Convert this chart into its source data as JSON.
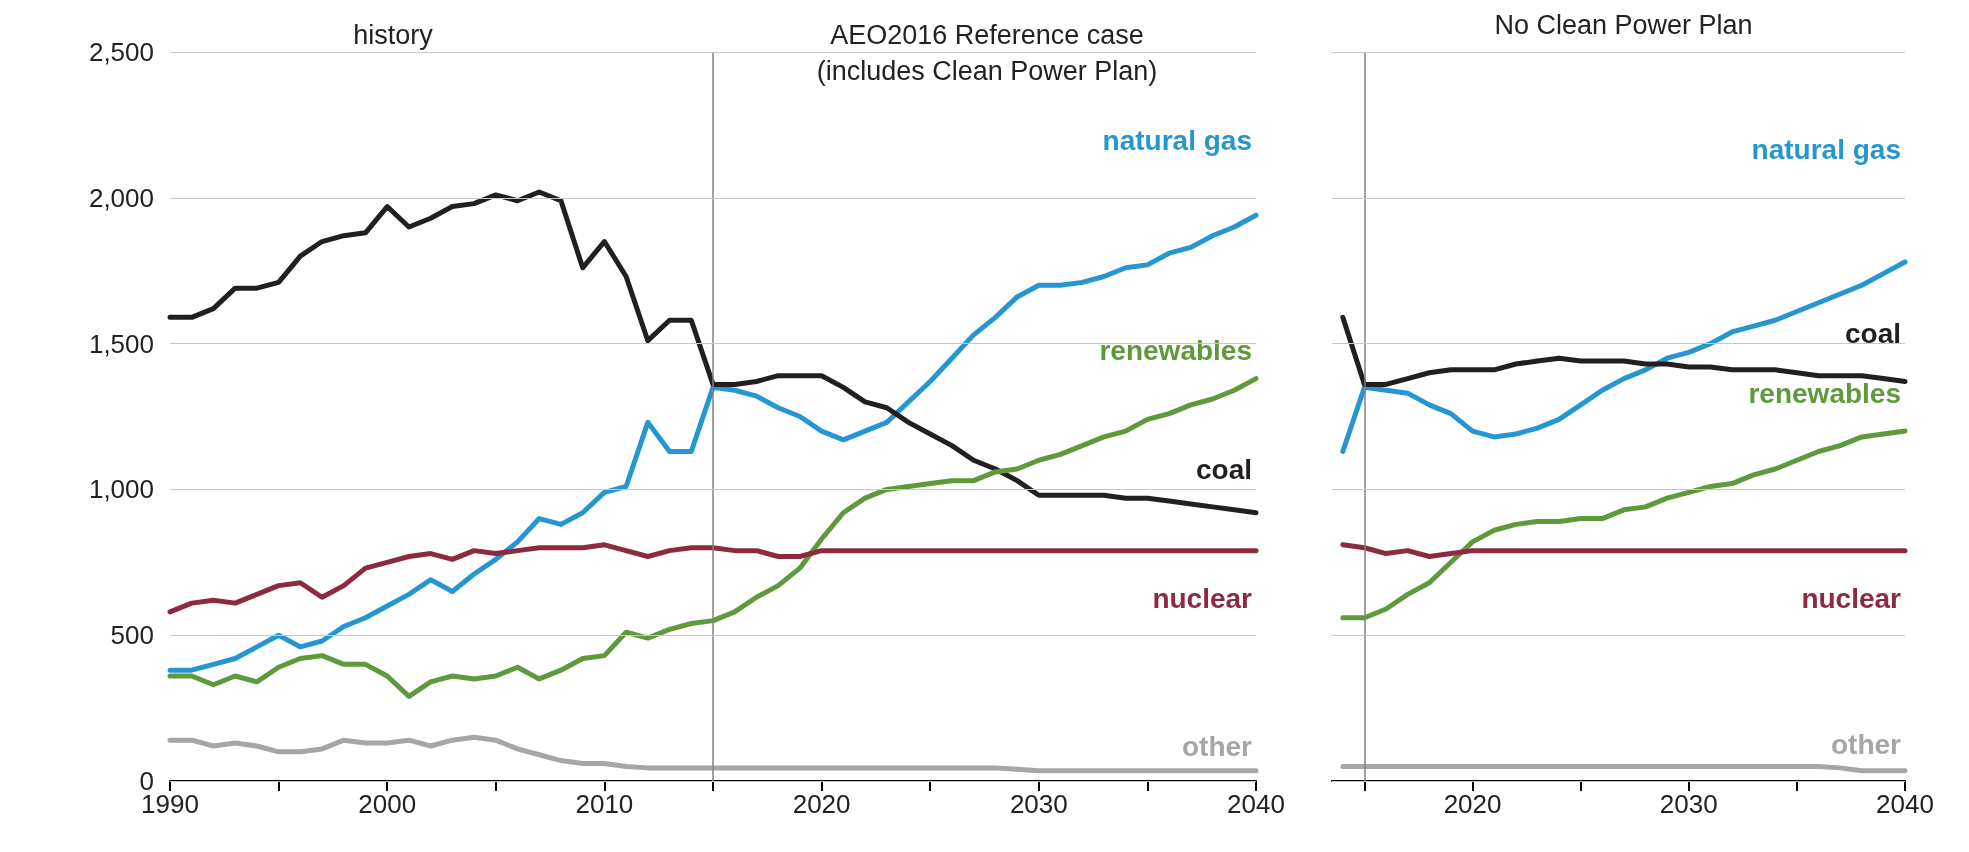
{
  "chart_data": [
    {
      "type": "line",
      "annotations": [
        "history",
        "AEO2016 Reference case\n(includes Clean Power Plan)"
      ],
      "x": [
        1990,
        1991,
        1992,
        1993,
        1994,
        1995,
        1996,
        1997,
        1998,
        1999,
        2000,
        2001,
        2002,
        2003,
        2004,
        2005,
        2006,
        2007,
        2008,
        2009,
        2010,
        2011,
        2012,
        2013,
        2014,
        2015,
        2016,
        2017,
        2018,
        2019,
        2020,
        2021,
        2022,
        2023,
        2024,
        2025,
        2026,
        2027,
        2028,
        2029,
        2030,
        2031,
        2032,
        2033,
        2034,
        2035,
        2036,
        2037,
        2038,
        2039,
        2040
      ],
      "series": [
        {
          "name": "natural gas",
          "color": "#2596cf",
          "values": [
            380,
            380,
            400,
            420,
            460,
            500,
            460,
            480,
            530,
            560,
            600,
            640,
            690,
            650,
            710,
            760,
            820,
            900,
            880,
            920,
            990,
            1010,
            1230,
            1130,
            1130,
            1350,
            1340,
            1320,
            1280,
            1250,
            1200,
            1170,
            1200,
            1230,
            1300,
            1370,
            1450,
            1530,
            1590,
            1660,
            1700,
            1700,
            1710,
            1730,
            1760,
            1770,
            1810,
            1830,
            1870,
            1900,
            1940
          ]
        },
        {
          "name": "coal",
          "color": "#231f20",
          "values": [
            1590,
            1590,
            1620,
            1690,
            1690,
            1710,
            1800,
            1850,
            1870,
            1880,
            1970,
            1900,
            1930,
            1970,
            1980,
            2010,
            1990,
            2020,
            1990,
            1760,
            1850,
            1730,
            1510,
            1580,
            1580,
            1360,
            1360,
            1370,
            1390,
            1390,
            1390,
            1350,
            1300,
            1280,
            1230,
            1190,
            1150,
            1100,
            1070,
            1030,
            980,
            980,
            980,
            980,
            970,
            970,
            960,
            950,
            940,
            930,
            920
          ]
        },
        {
          "name": "renewables",
          "color": "#5e9a3c",
          "values": [
            360,
            360,
            330,
            360,
            340,
            390,
            420,
            430,
            400,
            400,
            360,
            290,
            340,
            360,
            350,
            360,
            390,
            350,
            380,
            420,
            430,
            510,
            490,
            520,
            540,
            550,
            580,
            630,
            670,
            730,
            830,
            920,
            970,
            1000,
            1010,
            1020,
            1030,
            1030,
            1060,
            1070,
            1100,
            1120,
            1150,
            1180,
            1200,
            1240,
            1260,
            1290,
            1310,
            1340,
            1380
          ]
        },
        {
          "name": "nuclear",
          "color": "#8c2b40",
          "values": [
            580,
            610,
            620,
            610,
            640,
            670,
            680,
            630,
            670,
            730,
            750,
            770,
            780,
            760,
            790,
            780,
            790,
            800,
            800,
            800,
            810,
            790,
            770,
            790,
            800,
            800,
            790,
            790,
            770,
            770,
            790,
            790,
            790,
            790,
            790,
            790,
            790,
            790,
            790,
            790,
            790,
            790,
            790,
            790,
            790,
            790,
            790,
            790,
            790,
            790,
            790
          ]
        },
        {
          "name": "other",
          "color": "#a6a6a6",
          "values": [
            140,
            140,
            120,
            130,
            120,
            100,
            100,
            110,
            140,
            130,
            130,
            140,
            120,
            140,
            150,
            140,
            110,
            90,
            70,
            60,
            60,
            50,
            45,
            45,
            45,
            45,
            45,
            45,
            45,
            45,
            45,
            45,
            45,
            45,
            45,
            45,
            45,
            45,
            45,
            40,
            35,
            35,
            35,
            35,
            35,
            35,
            35,
            35,
            35,
            35,
            35
          ]
        }
      ],
      "xlim": [
        1990,
        2040
      ],
      "xticks": [
        1990,
        {
          "value": 1995,
          "label": null
        },
        2000,
        {
          "value": 2005,
          "label": null
        },
        2010,
        {
          "value": 2015,
          "label": null
        },
        2020,
        {
          "value": 2025,
          "label": null
        },
        2030,
        {
          "value": 2035,
          "label": null
        },
        2040
      ],
      "ylim": [
        0,
        2500
      ],
      "yticks": [
        0,
        500,
        {
          "value": 1000,
          "label": "1,000"
        },
        {
          "value": 1500,
          "label": "1,500"
        },
        {
          "value": 2000,
          "label": "2,000"
        },
        {
          "value": 2500,
          "label": "2,500"
        }
      ],
      "grid": "y",
      "legend": false,
      "marker": "none",
      "line_style": "solid",
      "ref_lines": [
        {
          "axis": "x",
          "value": 2015,
          "label": null,
          "color": "#808080"
        }
      ]
    },
    {
      "type": "line",
      "title": "No Clean Power Plan",
      "x": [
        2014,
        2015,
        2016,
        2017,
        2018,
        2019,
        2020,
        2021,
        2022,
        2023,
        2024,
        2025,
        2026,
        2027,
        2028,
        2029,
        2030,
        2031,
        2032,
        2033,
        2034,
        2035,
        2036,
        2037,
        2038,
        2039,
        2040
      ],
      "series": [
        {
          "name": "natural gas",
          "color": "#2596cf",
          "values": [
            1130,
            1350,
            1340,
            1330,
            1290,
            1260,
            1200,
            1180,
            1190,
            1210,
            1240,
            1290,
            1340,
            1380,
            1410,
            1450,
            1470,
            1500,
            1540,
            1560,
            1580,
            1610,
            1640,
            1670,
            1700,
            1740,
            1780
          ]
        },
        {
          "name": "coal",
          "color": "#231f20",
          "values": [
            1590,
            1360,
            1360,
            1380,
            1400,
            1410,
            1410,
            1410,
            1430,
            1440,
            1450,
            1440,
            1440,
            1440,
            1430,
            1430,
            1420,
            1420,
            1410,
            1410,
            1410,
            1400,
            1390,
            1390,
            1390,
            1380,
            1370
          ]
        },
        {
          "name": "renewables",
          "color": "#5e9a3c",
          "values": [
            560,
            560,
            590,
            640,
            680,
            750,
            820,
            860,
            880,
            890,
            890,
            900,
            900,
            930,
            940,
            970,
            990,
            1010,
            1020,
            1050,
            1070,
            1100,
            1130,
            1150,
            1180,
            1190,
            1200
          ]
        },
        {
          "name": "nuclear",
          "color": "#8c2b40",
          "values": [
            810,
            800,
            780,
            790,
            770,
            780,
            790,
            790,
            790,
            790,
            790,
            790,
            790,
            790,
            790,
            790,
            790,
            790,
            790,
            790,
            790,
            790,
            790,
            790,
            790,
            790,
            790
          ]
        },
        {
          "name": "other",
          "color": "#a6a6a6",
          "values": [
            50,
            50,
            50,
            50,
            50,
            50,
            50,
            50,
            50,
            50,
            50,
            50,
            50,
            50,
            50,
            50,
            50,
            50,
            50,
            50,
            50,
            50,
            50,
            45,
            35,
            35,
            35
          ]
        }
      ],
      "xlim": [
        2013.5,
        2040
      ],
      "xticks": [
        {
          "value": 2015,
          "label": null
        },
        2020,
        {
          "value": 2025,
          "label": null
        },
        2030,
        {
          "value": 2035,
          "label": null
        },
        2040
      ],
      "ylim": [
        0,
        2500
      ],
      "yticks": [
        0,
        500,
        1000,
        1500,
        2000,
        2500
      ],
      "tick_labels": "x",
      "grid": "y",
      "legend": false,
      "marker": "none",
      "line_style": "solid",
      "ref_lines": [
        {
          "axis": "x",
          "value": 2015,
          "label": null,
          "color": "#808080"
        }
      ]
    }
  ]
}
